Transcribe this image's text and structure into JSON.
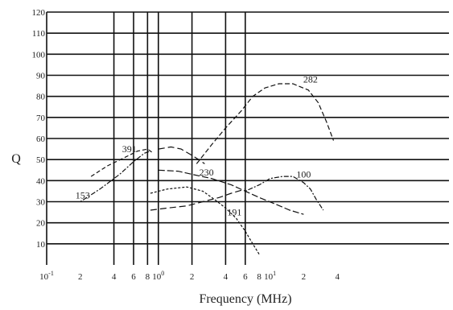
{
  "chart_data": {
    "type": "line",
    "xlabel": "Frequency (MHz)",
    "ylabel": "Q",
    "x_scale": "log",
    "xlim": [
      0.1,
      400
    ],
    "ylim": [
      0,
      120
    ],
    "grid": true,
    "y_ticks": [
      "120",
      "110",
      "100",
      "90",
      "80",
      "70",
      "60",
      "50",
      "40",
      "30",
      "20",
      "10"
    ],
    "y_tick_values": [
      120,
      110,
      100,
      90,
      80,
      70,
      60,
      50,
      40,
      30,
      20,
      10
    ],
    "x_ticks": [
      {
        "value": 0.1,
        "base": "10",
        "exp": "-1"
      },
      {
        "value": 0.2,
        "base": "2",
        "exp": ""
      },
      {
        "value": 0.4,
        "base": "4",
        "exp": ""
      },
      {
        "value": 0.6,
        "base": "6",
        "exp": ""
      },
      {
        "value": 0.8,
        "base": "8",
        "exp": ""
      },
      {
        "value": 1,
        "base": "10",
        "exp": "0"
      },
      {
        "value": 2,
        "base": "2",
        "exp": ""
      },
      {
        "value": 4,
        "base": "4",
        "exp": ""
      },
      {
        "value": 6,
        "base": "6",
        "exp": ""
      },
      {
        "value": 8,
        "base": "8",
        "exp": ""
      },
      {
        "value": 10,
        "base": "10",
        "exp": "1"
      },
      {
        "value": 20,
        "base": "2",
        "exp": ""
      },
      {
        "value": 40,
        "base": "4",
        "exp": ""
      }
    ],
    "vertical_grid": [
      0.4,
      0.6,
      0.8,
      1,
      2,
      4,
      6
    ],
    "series": [
      {
        "name": "391",
        "dash": "5,3",
        "label_at": [
          0.55,
          55
        ],
        "points": [
          [
            0.25,
            42
          ],
          [
            0.35,
            47
          ],
          [
            0.5,
            51
          ],
          [
            0.65,
            54
          ],
          [
            0.8,
            55
          ],
          [
            0.9,
            53
          ]
        ]
      },
      {
        "name": "153",
        "dash": "2,2,6,2",
        "label_at": [
          0.21,
          33
        ],
        "points": [
          [
            0.2,
            30
          ],
          [
            0.3,
            36
          ],
          [
            0.45,
            43
          ],
          [
            0.6,
            49
          ],
          [
            0.75,
            53
          ],
          [
            0.85,
            54
          ]
        ]
      },
      {
        "name": "",
        "dash": "8,4",
        "label_at": null,
        "points": [
          [
            1,
            55
          ],
          [
            1.3,
            56
          ],
          [
            1.6,
            55
          ],
          [
            2,
            52
          ],
          [
            2.3,
            50
          ],
          [
            2.6,
            48
          ]
        ]
      },
      {
        "name": "282",
        "dash": "6,3",
        "label_at": [
          23,
          88
        ],
        "points": [
          [
            2.2,
            48
          ],
          [
            3,
            57
          ],
          [
            4,
            65
          ],
          [
            5.5,
            73
          ],
          [
            7,
            80
          ],
          [
            9,
            84
          ],
          [
            12,
            86
          ],
          [
            16,
            86
          ],
          [
            22,
            83
          ],
          [
            27,
            77
          ],
          [
            32,
            68
          ],
          [
            37,
            59
          ]
        ]
      },
      {
        "name": "230",
        "dash": "8,3",
        "label_at": [
          2.7,
          44
        ],
        "points": [
          [
            1,
            45
          ],
          [
            1.5,
            44.5
          ],
          [
            2,
            43
          ],
          [
            3,
            41
          ],
          [
            4.5,
            38
          ],
          [
            6,
            35
          ],
          [
            8,
            32
          ],
          [
            11,
            29
          ],
          [
            15,
            26
          ],
          [
            20,
            24
          ]
        ]
      },
      {
        "name": "100",
        "dash": "2,2,6,2",
        "label_at": [
          20,
          43
        ],
        "points": [
          [
            6,
            35
          ],
          [
            8,
            38
          ],
          [
            10,
            41
          ],
          [
            13,
            42
          ],
          [
            16,
            42
          ],
          [
            20,
            39
          ],
          [
            23,
            36
          ],
          [
            26,
            31
          ],
          [
            30,
            26
          ]
        ]
      },
      {
        "name": "191",
        "dash": "3,2",
        "label_at": [
          4.8,
          25
        ],
        "points": [
          [
            0.85,
            34
          ],
          [
            1.2,
            36
          ],
          [
            1.8,
            37
          ],
          [
            2.5,
            35
          ],
          [
            3.2,
            31
          ],
          [
            4,
            27
          ],
          [
            5,
            22
          ],
          [
            6,
            16
          ],
          [
            7,
            10
          ],
          [
            8,
            5
          ]
        ]
      },
      {
        "name": "",
        "dash": "8,4",
        "label_at": null,
        "points": [
          [
            0.85,
            26
          ],
          [
            1.2,
            27
          ],
          [
            1.8,
            28
          ],
          [
            2.5,
            30
          ],
          [
            3.5,
            32
          ],
          [
            4.5,
            34
          ],
          [
            6,
            36
          ]
        ]
      }
    ]
  }
}
